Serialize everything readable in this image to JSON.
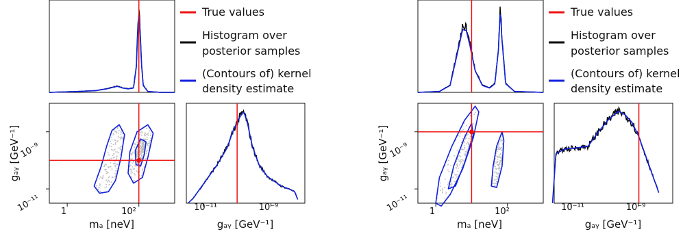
{
  "legend": {
    "true": "True values",
    "hist_line1": "Histogram over",
    "hist_line2": "posterior samples",
    "kde_line1": "(Contours of) kernel",
    "kde_line2": "density estimate"
  },
  "colors": {
    "true": "#ee1111",
    "hist": "#000000",
    "kde": "#1122dd",
    "samples": "#bdbdbd"
  },
  "chart_data": [
    {
      "type": "corner",
      "xlabel": "mₐ [neV]",
      "ylabel": "gₐᵧ [GeV⁻¹]",
      "xlabel_diag": "gₐᵧ [GeV⁻¹]",
      "x_ticks": [
        {
          "label": "1",
          "value": 0
        },
        {
          "label": "10²",
          "value": 2
        }
      ],
      "y_ticks": [
        {
          "label": "10⁻⁹",
          "value": -9
        },
        {
          "label": "10⁻¹¹",
          "value": -11
        }
      ],
      "diag_ticks": [
        {
          "label": "10⁻¹¹",
          "value": -11
        },
        {
          "label": "10⁻⁹",
          "value": -9
        }
      ],
      "x_scale": "log",
      "y_scale": "log",
      "log_m_range": [
        -0.5,
        3.0
      ],
      "log_g_range": [
        -11.5,
        -8.0
      ],
      "true_values": {
        "log_m": 2.0,
        "log_g": -10.0
      },
      "marginal_m": [
        [
          -0.5,
          0
        ],
        [
          0.3,
          0.01
        ],
        [
          0.8,
          0.02
        ],
        [
          1.1,
          0.04
        ],
        [
          1.4,
          0.07
        ],
        [
          1.55,
          0.05
        ],
        [
          1.7,
          0.04
        ],
        [
          1.85,
          0.05
        ],
        [
          1.93,
          0.3
        ],
        [
          1.97,
          0.7
        ],
        [
          2.0,
          0.93
        ],
        [
          2.03,
          0.75
        ],
        [
          2.07,
          0.35
        ],
        [
          2.12,
          0.08
        ],
        [
          2.25,
          0.01
        ],
        [
          2.6,
          0
        ],
        [
          3.0,
          0
        ]
      ],
      "marginal_g": [
        [
          -11.45,
          0.0
        ],
        [
          -11.3,
          0.05
        ],
        [
          -11.0,
          0.2
        ],
        [
          -10.6,
          0.4
        ],
        [
          -10.3,
          0.58
        ],
        [
          -10.1,
          0.78
        ],
        [
          -10.0,
          0.85
        ],
        [
          -9.9,
          0.92
        ],
        [
          -9.8,
          0.96
        ],
        [
          -9.7,
          0.85
        ],
        [
          -9.55,
          0.6
        ],
        [
          -9.35,
          0.4
        ],
        [
          -9.1,
          0.28
        ],
        [
          -8.7,
          0.18
        ],
        [
          -8.4,
          0.14
        ],
        [
          -8.3,
          0.12
        ],
        [
          -8.2,
          0.03
        ]
      ],
      "kde_contours": [
        [
          [
            0.75,
            -10.9
          ],
          [
            0.95,
            -10.2
          ],
          [
            1.1,
            -9.5
          ],
          [
            1.25,
            -8.95
          ],
          [
            1.45,
            -8.75
          ],
          [
            1.6,
            -9.1
          ],
          [
            1.5,
            -9.9
          ],
          [
            1.35,
            -10.7
          ],
          [
            1.15,
            -11.1
          ],
          [
            0.9,
            -11.15
          ]
        ],
        [
          [
            1.7,
            -10.45
          ],
          [
            1.75,
            -9.7
          ],
          [
            1.95,
            -9.0
          ],
          [
            2.25,
            -8.75
          ],
          [
            2.4,
            -9.05
          ],
          [
            2.25,
            -9.9
          ],
          [
            2.1,
            -10.6
          ],
          [
            1.85,
            -10.8
          ]
        ],
        [
          [
            1.92,
            -10.15
          ],
          [
            1.9,
            -9.65
          ],
          [
            2.05,
            -9.25
          ],
          [
            2.2,
            -9.35
          ],
          [
            2.15,
            -9.8
          ],
          [
            2.05,
            -10.2
          ]
        ]
      ]
    },
    {
      "type": "corner",
      "xlabel": "mₐ [neV]",
      "ylabel": "gₐᵧ [GeV⁻¹]",
      "xlabel_diag": "gₐᵧ [GeV⁻¹]",
      "x_ticks": [
        {
          "label": "1",
          "value": 0
        },
        {
          "label": "10²",
          "value": 2
        }
      ],
      "y_ticks": [
        {
          "label": "10⁻⁹",
          "value": -9
        },
        {
          "label": "10⁻¹¹",
          "value": -11
        }
      ],
      "diag_ticks": [
        {
          "label": "10⁻¹¹",
          "value": -11
        },
        {
          "label": "10⁻⁹",
          "value": -9
        }
      ],
      "x_scale": "log",
      "y_scale": "log",
      "log_m_range": [
        -0.5,
        3.0
      ],
      "log_g_range": [
        -11.5,
        -8.0
      ],
      "true_values": {
        "log_m": 1.0,
        "log_g": -9.0
      },
      "marginal_m": [
        [
          -0.5,
          0
        ],
        [
          0.1,
          0.01
        ],
        [
          0.4,
          0.08
        ],
        [
          0.6,
          0.45
        ],
        [
          0.75,
          0.73
        ],
        [
          0.85,
          0.72
        ],
        [
          0.95,
          0.55
        ],
        [
          1.1,
          0.25
        ],
        [
          1.3,
          0.08
        ],
        [
          1.5,
          0.05
        ],
        [
          1.65,
          0.1
        ],
        [
          1.75,
          0.5
        ],
        [
          1.8,
          0.95
        ],
        [
          1.85,
          0.6
        ],
        [
          1.95,
          0.1
        ],
        [
          2.2,
          0.01
        ],
        [
          3.0,
          0
        ]
      ],
      "marginal_g": [
        [
          -11.55,
          0.0
        ],
        [
          -11.45,
          0.52
        ],
        [
          -11.2,
          0.57
        ],
        [
          -10.9,
          0.58
        ],
        [
          -10.5,
          0.6
        ],
        [
          -10.2,
          0.75
        ],
        [
          -9.9,
          0.88
        ],
        [
          -9.6,
          0.97
        ],
        [
          -9.4,
          0.93
        ],
        [
          -9.2,
          0.85
        ],
        [
          -9.0,
          0.7
        ],
        [
          -8.8,
          0.5
        ],
        [
          -8.6,
          0.3
        ],
        [
          -8.42,
          0.12
        ],
        [
          -8.4,
          0.1
        ]
      ],
      "kde_contours": [
        [
          [
            0.0,
            -11.5
          ],
          [
            0.1,
            -10.6
          ],
          [
            0.45,
            -9.5
          ],
          [
            0.8,
            -8.6
          ],
          [
            1.1,
            -8.1
          ],
          [
            1.2,
            -8.3
          ],
          [
            1.05,
            -9.2
          ],
          [
            0.75,
            -10.3
          ],
          [
            0.4,
            -11.2
          ],
          [
            0.15,
            -11.6
          ]
        ],
        [
          [
            0.35,
            -11.0
          ],
          [
            0.5,
            -10.2
          ],
          [
            0.8,
            -9.2
          ],
          [
            1.0,
            -8.7
          ],
          [
            1.05,
            -9.1
          ],
          [
            0.8,
            -10.1
          ],
          [
            0.55,
            -10.9
          ]
        ],
        [
          [
            1.55,
            -10.9
          ],
          [
            1.6,
            -10.2
          ],
          [
            1.7,
            -9.5
          ],
          [
            1.85,
            -9.0
          ],
          [
            1.9,
            -9.3
          ],
          [
            1.85,
            -10.2
          ],
          [
            1.7,
            -10.95
          ]
        ]
      ]
    }
  ]
}
